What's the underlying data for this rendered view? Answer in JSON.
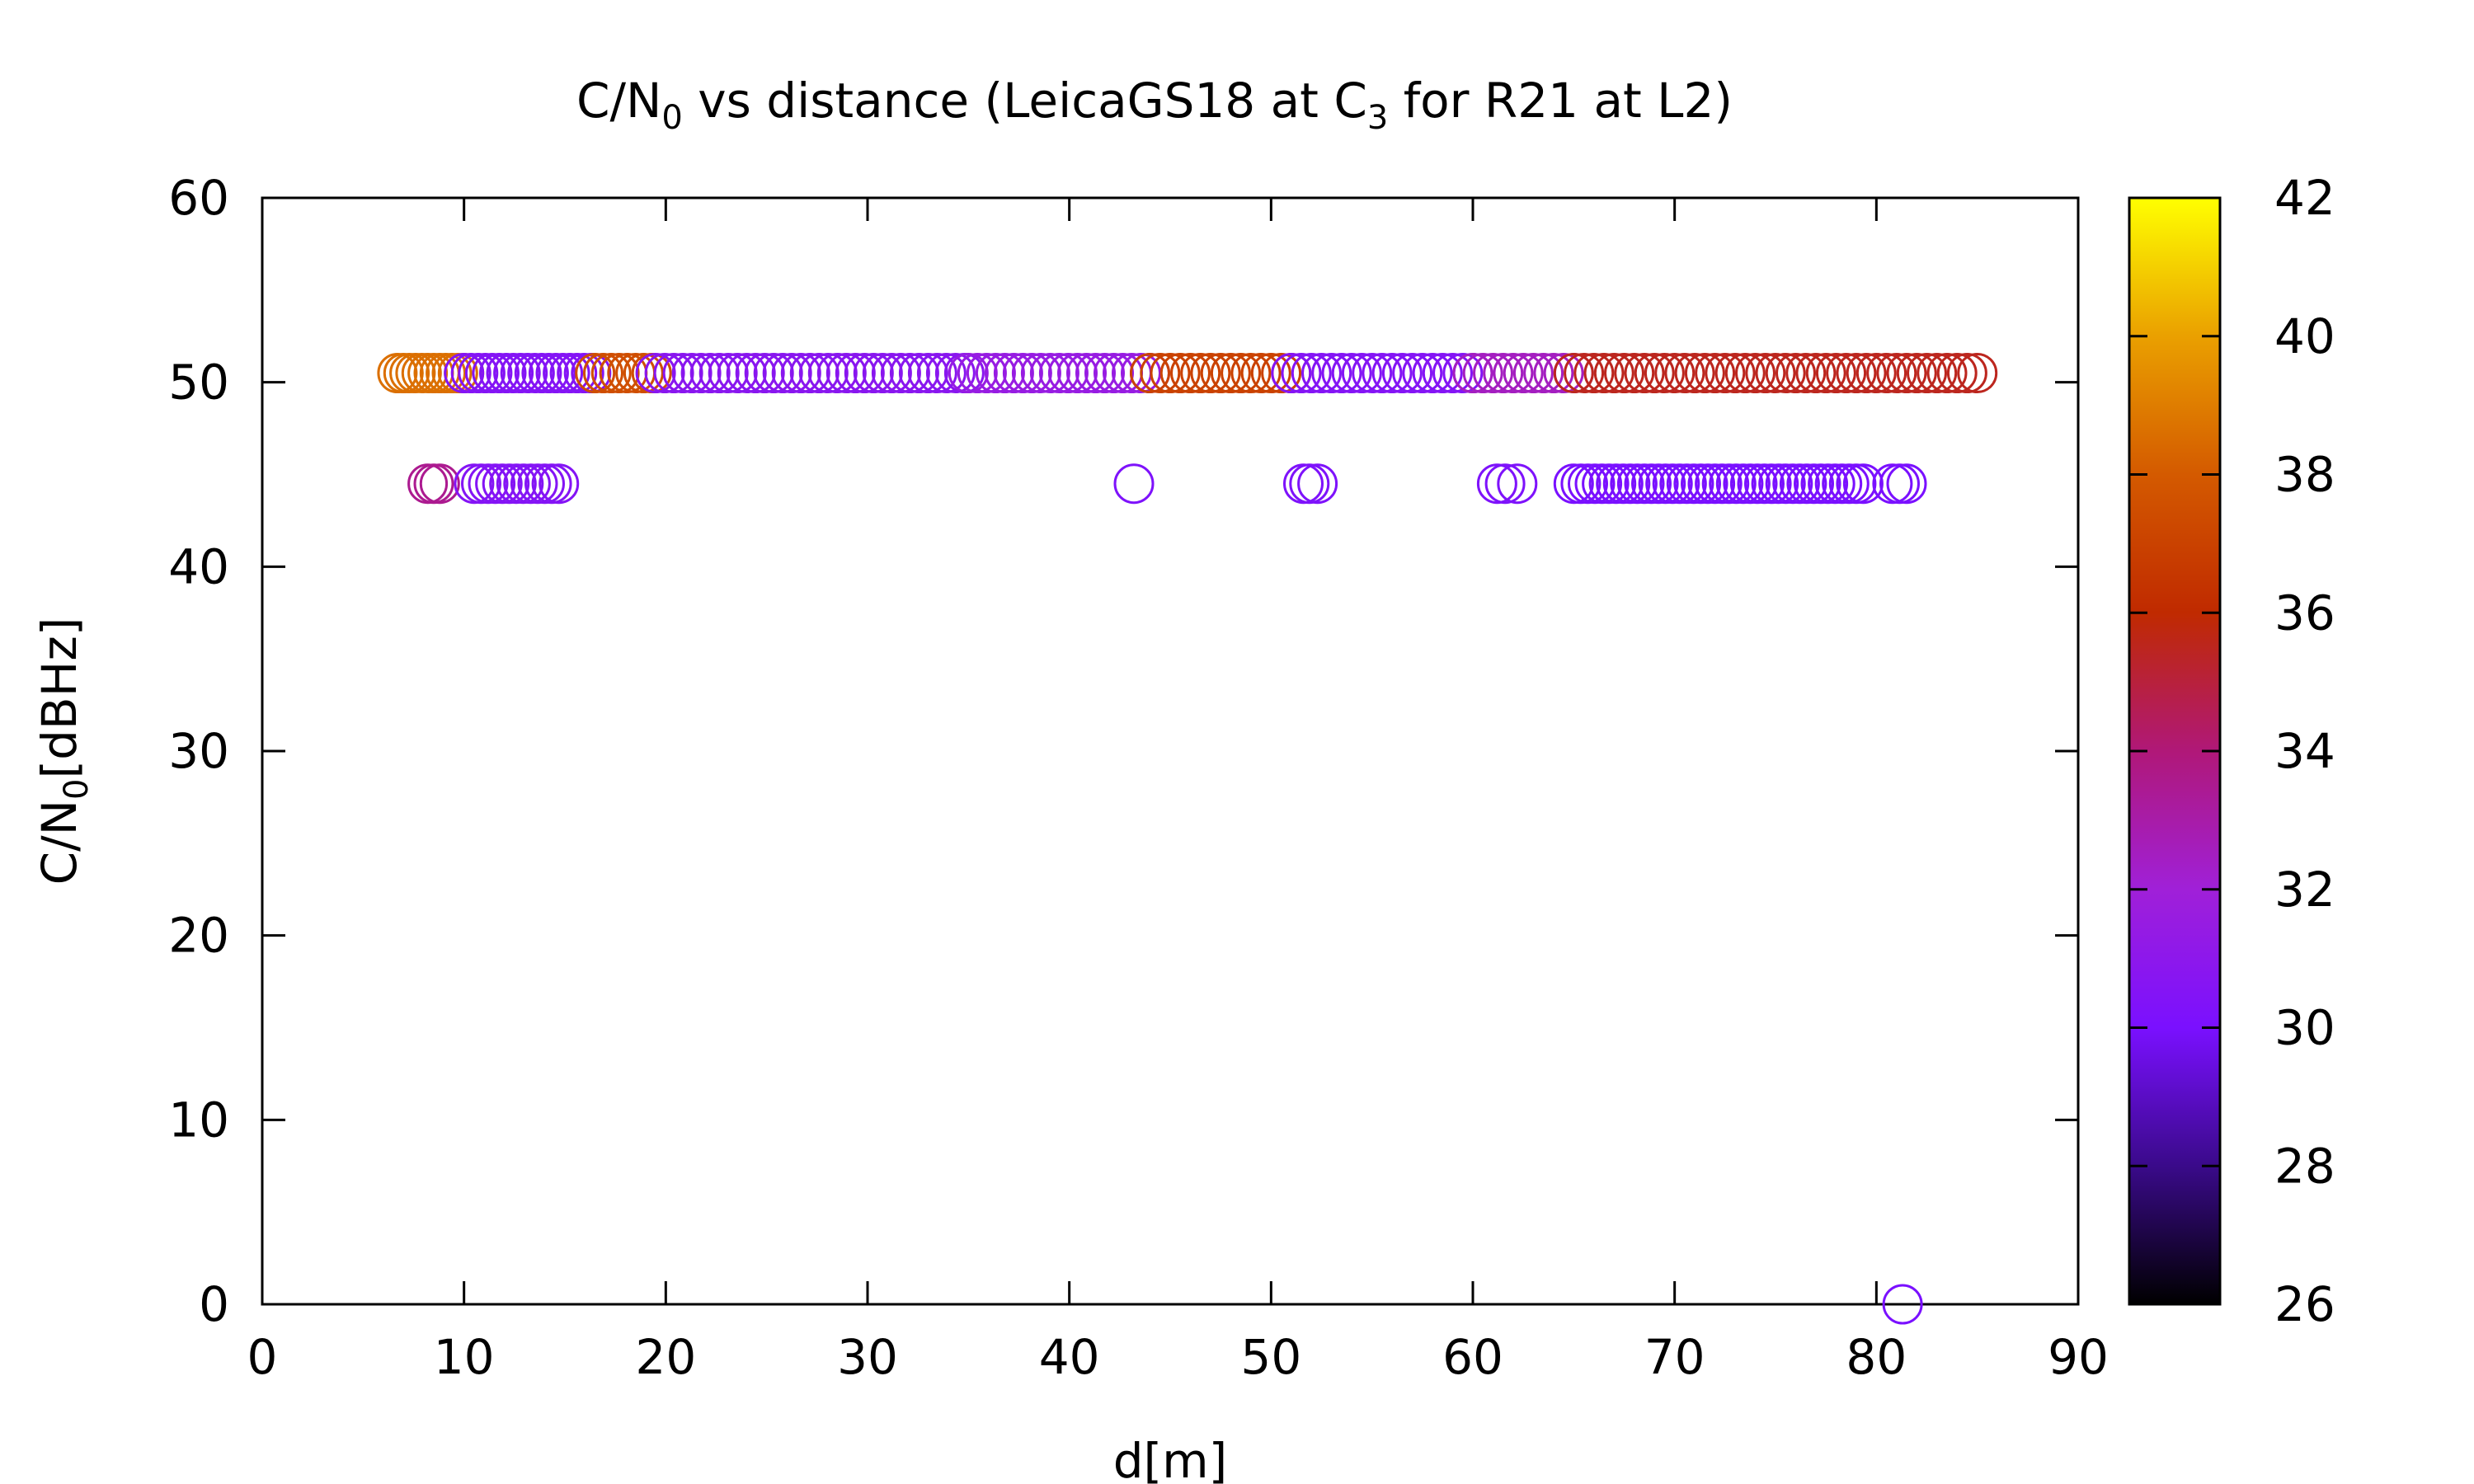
{
  "chart_data": {
    "type": "scatter",
    "title": {
      "pre": "C/N",
      "sub1": "0",
      "mid": " vs distance (LeicaGS18 at C",
      "sub2": "3",
      "post": " for R21 at L2)"
    },
    "xlabel": "d[m]",
    "ylabel": {
      "pre": "C/N",
      "sub": "0",
      "post": "[dBHz]"
    },
    "xlim": [
      0,
      90
    ],
    "ylim": [
      0,
      60
    ],
    "x_ticks": [
      0,
      10,
      20,
      30,
      40,
      50,
      60,
      70,
      80,
      90
    ],
    "y_ticks": [
      0,
      10,
      20,
      30,
      40,
      50,
      60
    ],
    "colorbar": {
      "range": [
        26,
        42
      ],
      "ticks": [
        26,
        28,
        30,
        32,
        34,
        36,
        38,
        40,
        42
      ],
      "palette": [
        "#000000",
        "#3a0a8a",
        "#7a10ff",
        "#a020d8",
        "#b01878",
        "#c02a00",
        "#d45a00",
        "#eaa000",
        "#ffff00"
      ]
    },
    "marker": "open-circle",
    "grid": false,
    "legend": "none",
    "point_groups": [
      {
        "y": 50.5,
        "x_from": 6.7,
        "x_to": 10.0,
        "step": 0.3,
        "c": 38.6
      },
      {
        "y": 50.5,
        "x_from": 10.0,
        "x_to": 16.5,
        "step": 0.35,
        "c": 30.5
      },
      {
        "y": 50.5,
        "x_from": 16.5,
        "x_to": 19.5,
        "step": 0.4,
        "c": 37.5
      },
      {
        "y": 50.5,
        "x_from": 19.5,
        "x_to": 35.0,
        "step": 0.45,
        "c": 30.8
      },
      {
        "y": 50.5,
        "x_from": 35.0,
        "x_to": 44.0,
        "step": 0.45,
        "c": 31.5
      },
      {
        "y": 50.5,
        "x_from": 44.0,
        "x_to": 51.0,
        "step": 0.5,
        "c": 37.0
      },
      {
        "y": 50.5,
        "x_from": 51.0,
        "x_to": 60.0,
        "step": 0.5,
        "c": 30.5
      },
      {
        "y": 50.5,
        "x_from": 60.0,
        "x_to": 65.0,
        "step": 0.5,
        "c": 32.5
      },
      {
        "y": 50.5,
        "x_from": 65.0,
        "x_to": 85.0,
        "step": 0.5,
        "c": 35.5
      },
      {
        "y": 44.5,
        "x_from": 8.2,
        "x_to": 8.8,
        "step": 0.3,
        "c": 33.5
      },
      {
        "y": 44.5,
        "x_from": 10.5,
        "x_to": 15.0,
        "step": 0.35,
        "c": 30.5
      },
      {
        "y": 44.5,
        "x_from": 65.0,
        "x_to": 79.5,
        "step": 0.35,
        "c": 30.0
      },
      {
        "y": 44.5,
        "x_from": 80.8,
        "x_to": 81.5,
        "step": 0.35,
        "c": 30.0
      }
    ],
    "points": [
      {
        "x": 43.2,
        "y": 44.5,
        "c": 30.2
      },
      {
        "x": 51.6,
        "y": 44.5,
        "c": 30.2
      },
      {
        "x": 51.9,
        "y": 44.5,
        "c": 30.2
      },
      {
        "x": 52.3,
        "y": 44.5,
        "c": 30.2
      },
      {
        "x": 61.2,
        "y": 44.5,
        "c": 30.2
      },
      {
        "x": 61.6,
        "y": 44.5,
        "c": 30.2
      },
      {
        "x": 62.2,
        "y": 44.5,
        "c": 30.2
      },
      {
        "x": 81.3,
        "y": 0,
        "c": 30.0
      }
    ]
  }
}
